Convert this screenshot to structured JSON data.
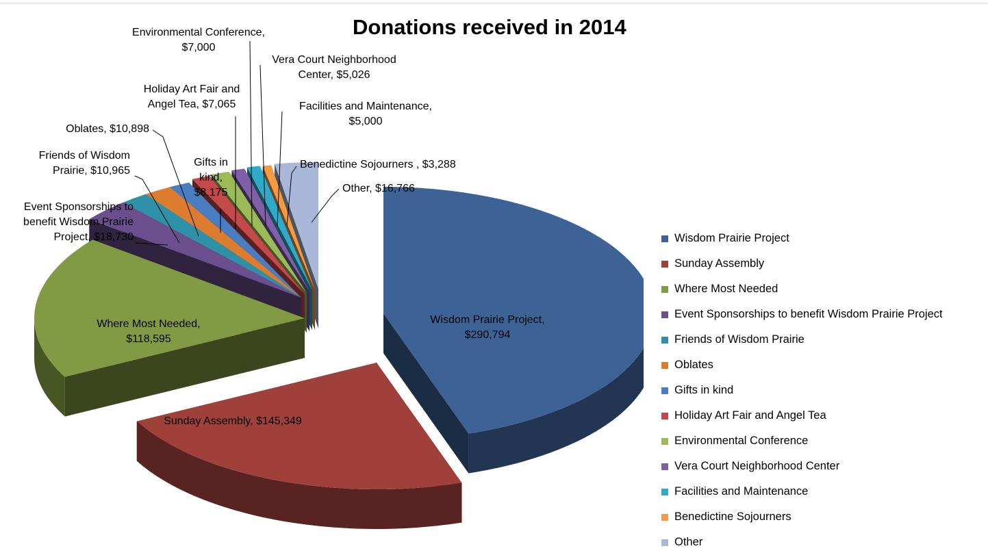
{
  "chart_data": {
    "type": "pie",
    "title": "Donations received in 2014",
    "legend_position": "right",
    "slices": [
      {
        "name": "Wisdom Prairie Project",
        "value": 290794,
        "label": "Wisdom Prairie Project, $290,794",
        "color": "#3D6396"
      },
      {
        "name": "Sunday Assembly",
        "value": 145349,
        "label": "Sunday Assembly, $145,349",
        "color": "#A0403B"
      },
      {
        "name": "Where Most Needed",
        "value": 118595,
        "label": "Where Most Needed, $118,595",
        "color": "#829A43"
      },
      {
        "name": "Event Sponsorships to benefit Wisdom Prairie Project",
        "value": 18730,
        "label": "Event Sponsorships to benefit Wisdom Prairie Project, $18,730",
        "color": "#6A4E8E"
      },
      {
        "name": "Friends of Wisdom Prairie",
        "value": 10965,
        "label": "Friends of Wisdom Prairie, $10,965",
        "color": "#2F91A8"
      },
      {
        "name": "Oblates",
        "value": 10898,
        "label": "Oblates, $10,898",
        "color": "#DB7C2F"
      },
      {
        "name": "Gifts in kind",
        "value": 8175,
        "label": "Gifts in kind, $8,175",
        "color": "#4A7CC1"
      },
      {
        "name": "Holiday Art Fair and Angel Tea",
        "value": 7065,
        "label": "Holiday Art Fair and Angel Tea, $7,065",
        "color": "#C4494A"
      },
      {
        "name": "Environmental Conference",
        "value": 7000,
        "label": "Environmental Conference, $7,000",
        "color": "#9BBB59"
      },
      {
        "name": "Vera Court Neighborhood Center",
        "value": 5026,
        "label": "Vera Court Neighborhood Center, $5,026",
        "color": "#7F5FA6"
      },
      {
        "name": "Facilities and Maintenance",
        "value": 5000,
        "label": "Facilities and Maintenance, $5,000",
        "color": "#2FAAC8"
      },
      {
        "name": "Benedictine Sojourners",
        "value": 3288,
        "label": "Benedictine Sojourners , $3,288",
        "color": "#F39A44"
      },
      {
        "name": "Other",
        "value": 16766,
        "label": "Other, $16,766",
        "color": "#A9B8D8"
      }
    ]
  }
}
